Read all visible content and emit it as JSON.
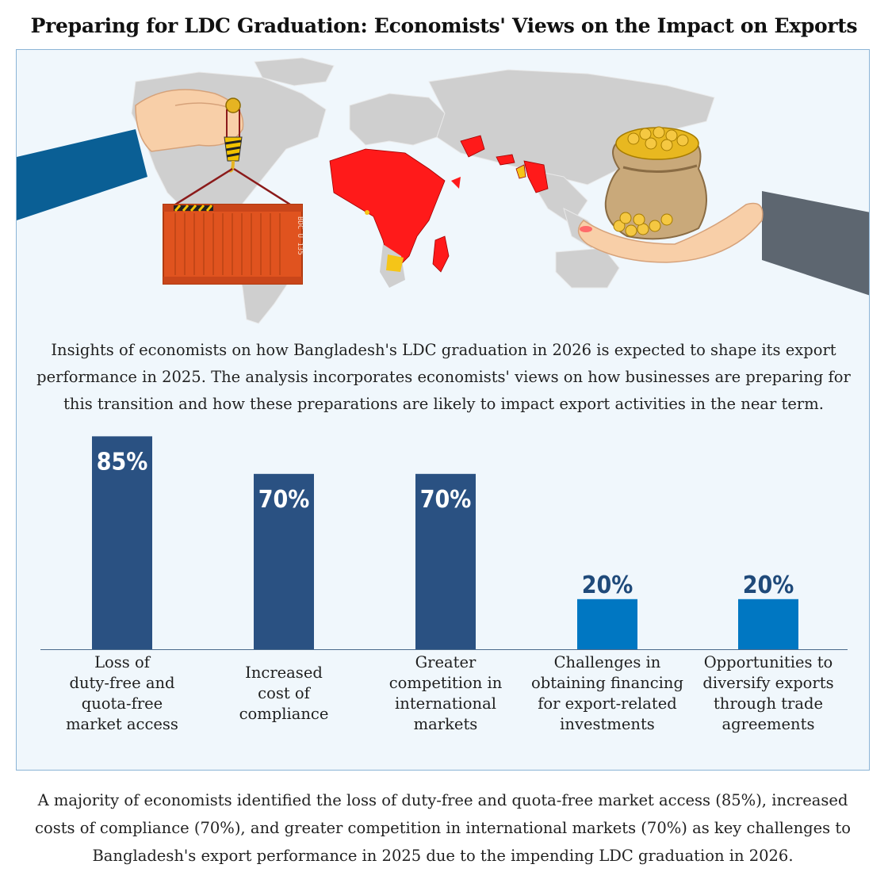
{
  "title": "Preparing for LDC Graduation: Economists' Views on the Impact on Exports",
  "intro": "Insights of economists on how Bangladesh's LDC graduation in 2026 is expected to shape its export performance in 2025. The analysis incorporates economists' views on how businesses are preparing for this transition and how these preparations are likely to impact export activities in the near term.",
  "illustration": {
    "container_text": "BDC U 135",
    "colors": {
      "ldc_red": "#ff1a1a",
      "graduating_yellow": "#f5c518",
      "land_grey": "#cfcfcf",
      "container_orange": "#e0531f",
      "sleeve_blue": "#0a5f95",
      "sleeve_grey": "#5d6670"
    }
  },
  "chart_data": {
    "type": "bar",
    "categories": [
      "Loss of duty-free and quota-free market access",
      "Increased cost of compliance",
      "Greater competition in international markets",
      "Challenges in obtaining financing for export-related investments",
      "Opportunities to diversify exports through trade agreements"
    ],
    "category_lines": [
      [
        "Loss of",
        "duty-free and",
        "quota-free",
        "market access"
      ],
      [
        "Increased",
        "cost of",
        "compliance"
      ],
      [
        "Greater",
        "competition in",
        "international",
        "markets"
      ],
      [
        "Challenges in",
        "obtaining financing",
        "for export-related",
        "investments"
      ],
      [
        "Opportunities to",
        "diversify exports",
        "through trade",
        "agreements"
      ]
    ],
    "values": [
      85,
      70,
      70,
      20,
      20
    ],
    "value_labels": [
      "85%",
      "70%",
      "70%",
      "20%",
      "20%"
    ],
    "unit": "%",
    "ylim": [
      0,
      100
    ],
    "title": "",
    "xlabel": "",
    "ylabel": "",
    "grid": false,
    "colors": {
      "challenge": "#2a5182",
      "opportunity": "#0077c2"
    },
    "bar_color_keys": [
      "challenge",
      "challenge",
      "challenge",
      "opportunity",
      "opportunity"
    ]
  },
  "footer": "A majority of economists identified the loss of duty-free and quota-free market access (85%), increased costs of compliance (70%), and greater competition in international markets (70%) as key challenges to Bangladesh's export performance in 2025 due to the impending LDC graduation in 2026."
}
